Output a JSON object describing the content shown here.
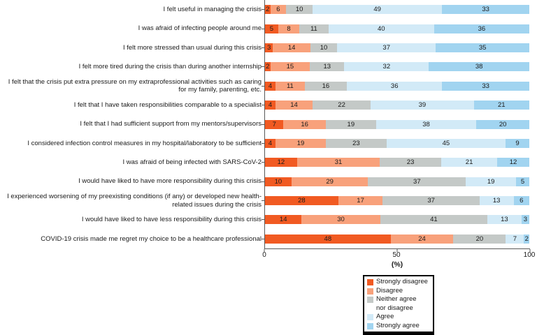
{
  "figure": {
    "background": "#ffffff",
    "axis_color": "#595959",
    "text_color": "#1a1a1a"
  },
  "x_axis": {
    "label": "(%)",
    "tick_labels": [
      "0",
      "50",
      "100"
    ]
  },
  "legend": {
    "items": [
      {
        "label": "Strongly disagree",
        "color": "#F15A22"
      },
      {
        "label": "Disagree",
        "color": "#F8A17B"
      },
      {
        "label": "Neither agree\nnor disagree",
        "color": "#C4C9C7"
      },
      {
        "label": "Agree",
        "color": "#D2EAF7"
      },
      {
        "label": "Strongly agree",
        "color": "#A1D4F0"
      }
    ]
  },
  "chart_data": {
    "type": "bar",
    "stacked": true,
    "orientation": "horizontal",
    "title": "",
    "xlabel": "(%)",
    "ylabel": "",
    "xlim": [
      0,
      100
    ],
    "xticks": [
      0,
      50,
      100
    ],
    "grid": false,
    "legend_position": "bottom",
    "categories": [
      "I felt useful in managing the crisis",
      "I was afraid of infecting people around me",
      "I felt more stressed than usual during this crisis",
      "I felt more tired during the crisis than during another internship",
      "I felt that the crisis put extra pressure on my extraprofessional activities such as caring for my family, parenting, etc.",
      "I felt that I have taken responsibilities comparable to a specialist",
      "I felt that I had sufficient support from my mentors/supervisors",
      "I considered infection control measures in my hospital/laboratory to be sufficient",
      "I was afraid of being infected with SARS-CoV-2",
      "I would have liked to have more responsibility during this crisis",
      "I experienced worsening of my preexisting conditions (if any) or developed new health-related issues during the crisis",
      "I would have liked to have less responsibility during this crisis",
      "COVID-19 crisis made me regret my choice to be a healthcare professional"
    ],
    "series": [
      {
        "name": "Strongly disagree",
        "color": "#F15A22",
        "values": [
          2,
          5,
          3,
          2,
          4,
          4,
          7,
          4,
          12,
          10,
          28,
          14,
          48
        ]
      },
      {
        "name": "Disagree",
        "color": "#F8A17B",
        "values": [
          6,
          8,
          14,
          15,
          11,
          14,
          16,
          19,
          31,
          29,
          17,
          30,
          24
        ]
      },
      {
        "name": "Neither agree nor disagree",
        "color": "#C4C9C7",
        "values": [
          10,
          11,
          10,
          13,
          16,
          22,
          19,
          23,
          23,
          37,
          37,
          41,
          20
        ]
      },
      {
        "name": "Agree",
        "color": "#D2EAF7",
        "values": [
          49,
          40,
          37,
          32,
          36,
          39,
          38,
          45,
          21,
          19,
          13,
          13,
          7
        ]
      },
      {
        "name": "Strongly agree",
        "color": "#A1D4F0",
        "values": [
          33,
          36,
          35,
          38,
          33,
          21,
          20,
          9,
          12,
          5,
          6,
          3,
          2
        ]
      }
    ]
  }
}
